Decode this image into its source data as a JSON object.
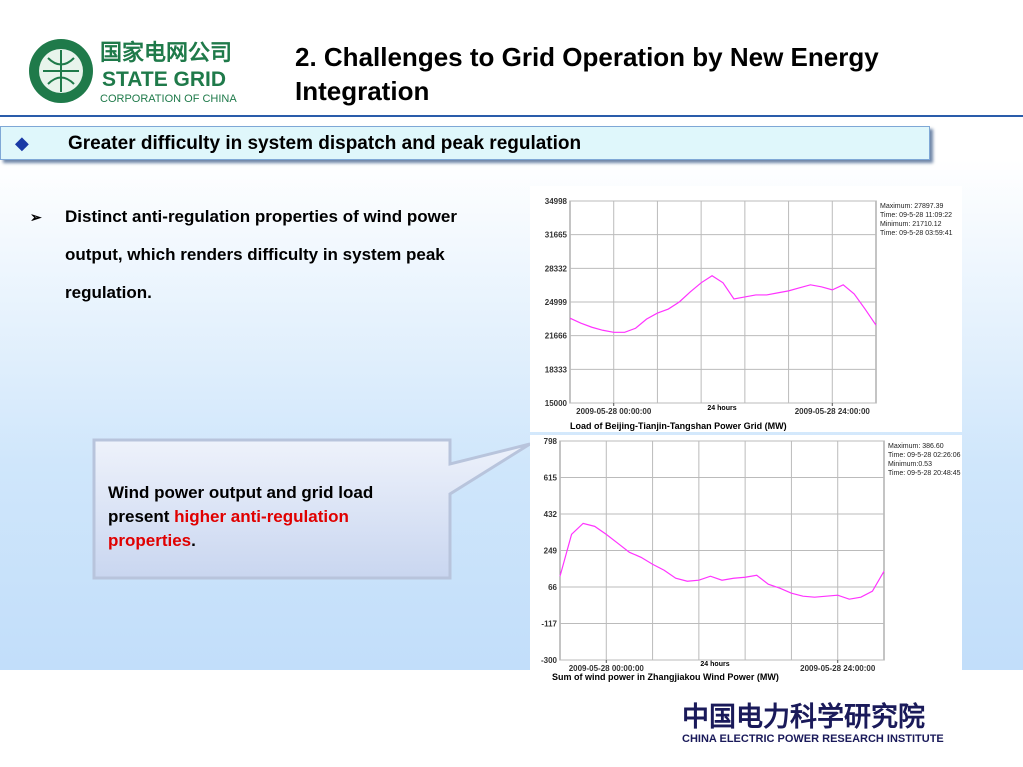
{
  "header": {
    "logo": {
      "chinese": "国家电网公司",
      "name": "STATE GRID",
      "subtitle": "CORPORATION OF CHINA"
    },
    "title": "2. Challenges to Grid Operation by New Energy Integration"
  },
  "banner": "Greater difficulty in system dispatch and peak regulation",
  "bullet": "Distinct anti-regulation properties of wind power output, which renders difficulty in system peak regulation.",
  "callout": {
    "text": "Wind power output and grid load present ",
    "highlight": "higher anti-regulation properties",
    "end": "."
  },
  "footer": {
    "chinese": "中国电力科学研究院",
    "english": "CHINA ELECTRIC POWER RESEARCH INSTITUTE"
  },
  "chart_data": [
    {
      "type": "line",
      "caption": "Load of Beijing-Tianjin-Tangshan Power Grid (MW)",
      "x_axis_label": "24 hours",
      "annotations": [
        "Maximum: 27897.39",
        "Time: 09-5-28 11:09:22",
        "Minimum: 21710.12",
        "Time: 09-5-28 03:59:41"
      ],
      "x": [
        -4.8,
        -3.6,
        -2.4,
        -1.2,
        0,
        1.2,
        2.4,
        3.6,
        4.8,
        6,
        7.2,
        8.4,
        9.6,
        10.8,
        12,
        13.2,
        14.4,
        15.6,
        16.8,
        18,
        19.2,
        20.4,
        21.6,
        22.8,
        24,
        25.2,
        26.4,
        27.6,
        28.8
      ],
      "series": [
        {
          "name": "Load",
          "color": "#ff33ff",
          "values": [
            23400,
            22900,
            22500,
            22200,
            22000,
            22000,
            22400,
            23300,
            23900,
            24300,
            25000,
            26000,
            26900,
            27600,
            26900,
            25300,
            25500,
            25700,
            25700,
            25900,
            26100,
            26400,
            26700,
            26500,
            26200,
            26700,
            25800,
            24300,
            22700
          ]
        }
      ],
      "xlim": [
        -4.8,
        28.8
      ],
      "xticks": [
        {
          "value": 0,
          "label": "2009-05-28 00:00:00"
        },
        {
          "value": 24,
          "label": "2009-05-28 24:00:00"
        }
      ],
      "ylim": [
        15000,
        34998
      ],
      "yticks": [
        15000,
        18333,
        21666,
        24999,
        28332,
        31665,
        34998
      ],
      "grid": true
    },
    {
      "type": "line",
      "caption": "Sum of wind power in Zhangjiakou Wind Power (MW)",
      "x_axis_label": "24 hours",
      "annotations": [
        "Maximum: 386.60",
        "Time: 09-5-28 02:26:06",
        "Minimum:0.53",
        "Time: 09-5-28 20:48:45"
      ],
      "x": [
        -4.8,
        -3.6,
        -2.4,
        -1.2,
        0,
        1.2,
        2.4,
        3.6,
        4.8,
        6,
        7.2,
        8.4,
        9.6,
        10.8,
        12,
        13.2,
        14.4,
        15.6,
        16.8,
        18,
        19.2,
        20.4,
        21.6,
        22.8,
        24,
        25.2,
        26.4,
        27.6,
        28.8
      ],
      "series": [
        {
          "name": "Wind power",
          "color": "#ff33ff",
          "values": [
            120,
            330,
            385,
            370,
            330,
            285,
            240,
            215,
            180,
            150,
            110,
            95,
            100,
            120,
            100,
            110,
            115,
            125,
            80,
            60,
            35,
            20,
            15,
            20,
            25,
            5,
            15,
            45,
            145
          ]
        }
      ],
      "xlim": [
        -4.8,
        28.8
      ],
      "xticks": [
        {
          "value": 0,
          "label": "2009-05-28 00:00:00"
        },
        {
          "value": 24,
          "label": "2009-05-28 24:00:00"
        }
      ],
      "ylim": [
        -300,
        798
      ],
      "yticks": [
        -300,
        -117,
        66,
        249,
        432,
        615,
        798
      ],
      "grid": true
    }
  ]
}
